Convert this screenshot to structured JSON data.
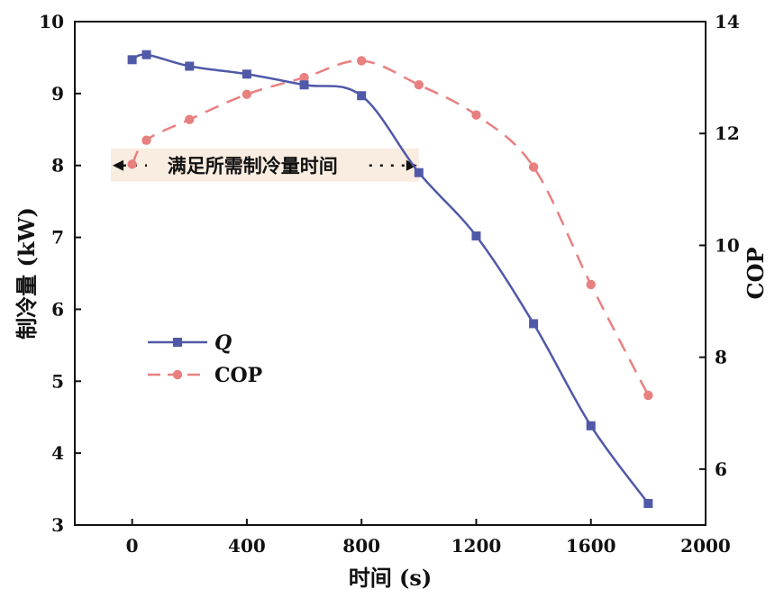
{
  "chart_data": {
    "type": "line",
    "x": [
      0,
      50,
      200,
      400,
      600,
      800,
      1000,
      1200,
      1400,
      1600,
      1800
    ],
    "xlabel": "时间  (s)",
    "xlim": [
      -200,
      2000
    ],
    "xticks": [
      0,
      400,
      800,
      1200,
      1600,
      2000
    ],
    "ylabel_left": "制冷量 (kW)",
    "ylim_left": [
      3,
      10
    ],
    "yticks_left": [
      3,
      4,
      5,
      6,
      7,
      8,
      9,
      10
    ],
    "ylabel_right": "COP",
    "ylim_right": [
      5,
      14
    ],
    "yticks_right": [
      6,
      8,
      10,
      12,
      14
    ],
    "series": [
      {
        "name": "Q",
        "axis": "left",
        "color": "#5059a8",
        "line_style": "solid",
        "marker": "square",
        "x": [
          0,
          50,
          200,
          400,
          600,
          800,
          1000,
          1200,
          1400,
          1600,
          1800
        ],
        "values": [
          9.47,
          9.54,
          9.38,
          9.27,
          9.12,
          8.97,
          7.9,
          7.02,
          5.8,
          4.38,
          3.3
        ]
      },
      {
        "name": "COP",
        "axis": "right",
        "color": "#e88080",
        "line_style": "dashed",
        "marker": "circle",
        "x": [
          0,
          50,
          200,
          400,
          600,
          800,
          1000,
          1200,
          1400,
          1600,
          1800
        ],
        "values": [
          11.45,
          11.88,
          12.25,
          12.7,
          13.0,
          13.3,
          12.87,
          12.33,
          11.4,
          9.3,
          7.32
        ]
      }
    ],
    "annotation": {
      "text": "满足所需制冷量时间",
      "x_start": -200,
      "x_end": 1000,
      "y": 8.0,
      "background": "#f9ece0"
    },
    "legend": {
      "position": "middle-left"
    },
    "grid": false
  }
}
